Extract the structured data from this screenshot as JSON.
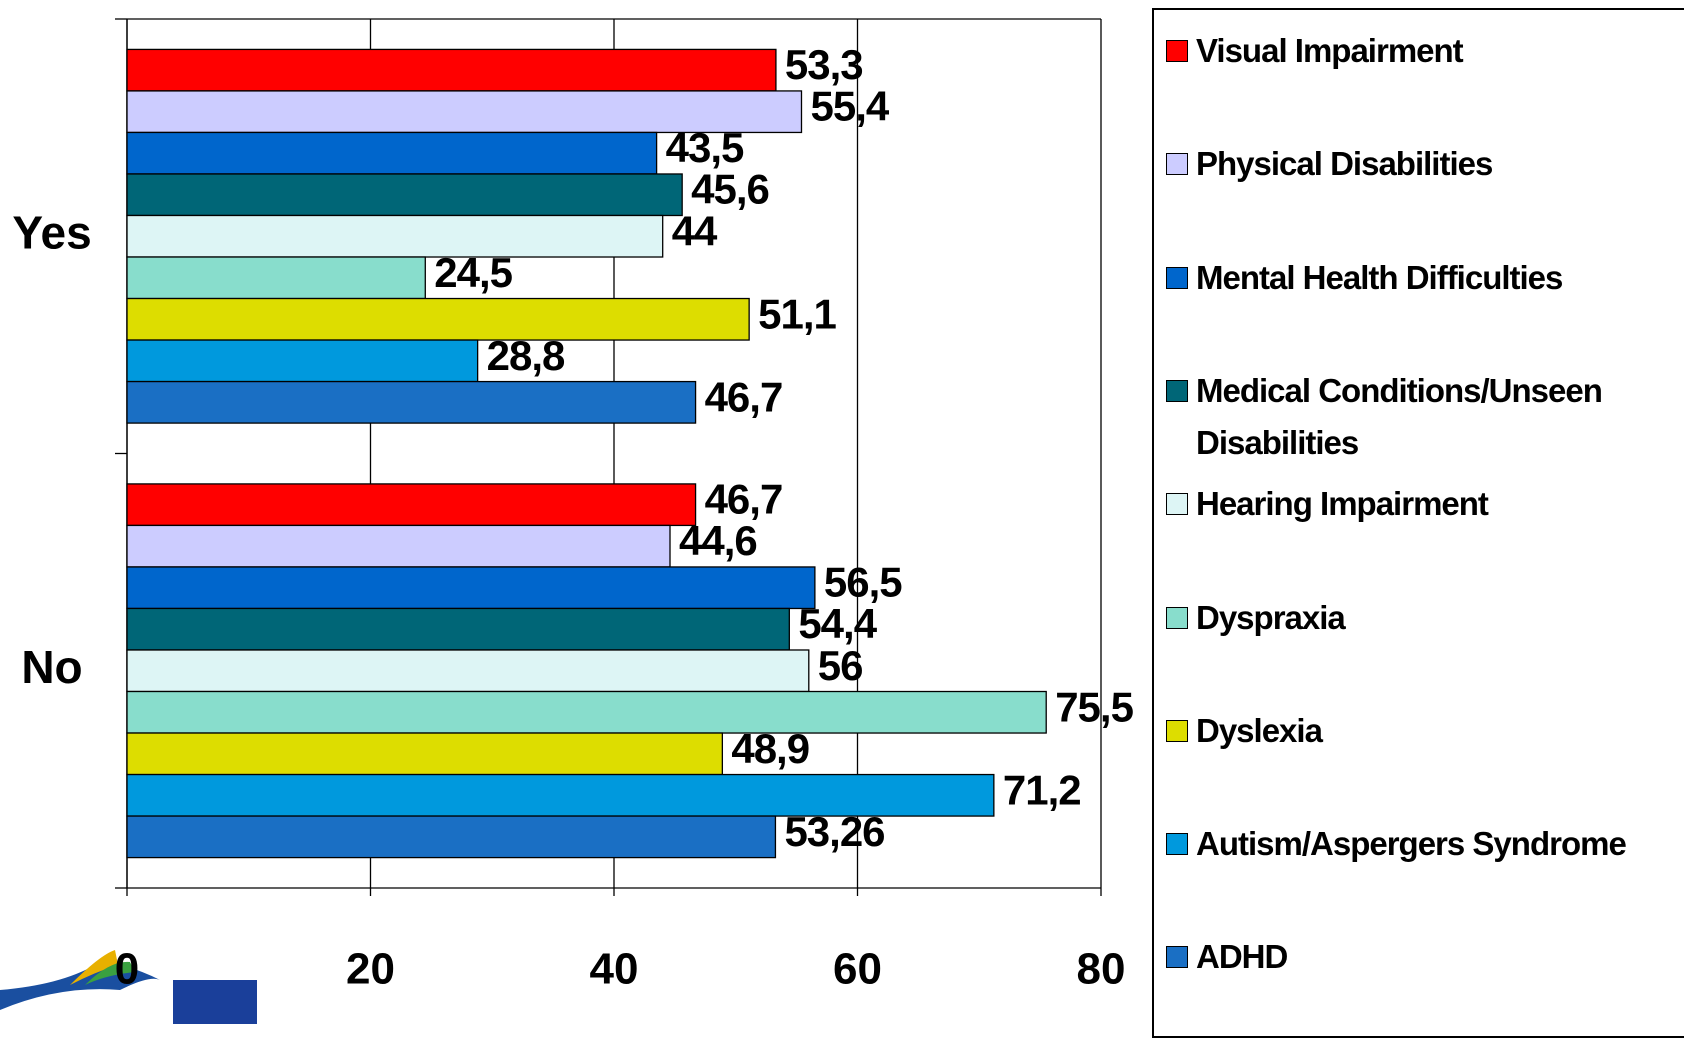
{
  "chart_data": {
    "type": "bar",
    "orientation": "horizontal",
    "categories": [
      "Yes",
      "No"
    ],
    "series": [
      {
        "name": "Visual Impairment",
        "color": "#ff0000",
        "values": [
          53.3,
          46.7
        ],
        "value_labels": [
          "53,3",
          "46,7"
        ]
      },
      {
        "name": "Physical Disabilities",
        "color": "#ccccff",
        "values": [
          55.4,
          44.6
        ],
        "value_labels": [
          "55,4",
          "44,6"
        ]
      },
      {
        "name": "Mental Health Difficulties",
        "color": "#0066cc",
        "values": [
          43.5,
          56.5
        ],
        "value_labels": [
          "43,5",
          "56,5"
        ]
      },
      {
        "name": "Medical Conditions/Unseen Disabilities",
        "color": "#006677",
        "values": [
          45.6,
          54.4
        ],
        "value_labels": [
          "45,6",
          "54,4"
        ]
      },
      {
        "name": "Hearing Impairment",
        "color": "#ddf5f5",
        "values": [
          44,
          56
        ],
        "value_labels": [
          "44",
          "56"
        ]
      },
      {
        "name": "Dyspraxia",
        "color": "#88ddcc",
        "values": [
          24.5,
          75.5
        ],
        "value_labels": [
          "24,5",
          "75,5"
        ]
      },
      {
        "name": "Dyslexia",
        "color": "#dddd00",
        "values": [
          51.1,
          48.9
        ],
        "value_labels": [
          "51,1",
          "48,9"
        ]
      },
      {
        "name": "Autism/Aspergers Syndrome",
        "color": "#0099dd",
        "values": [
          28.8,
          71.2
        ],
        "value_labels": [
          "28,8",
          "71,2"
        ]
      },
      {
        "name": "ADHD",
        "color": "#1a6fc4",
        "values": [
          46.7,
          53.26
        ],
        "value_labels": [
          "46,7",
          "53,26"
        ]
      }
    ],
    "xlim": [
      0,
      80
    ],
    "xticks": [
      0,
      20,
      40,
      60,
      80
    ],
    "grid": true
  }
}
